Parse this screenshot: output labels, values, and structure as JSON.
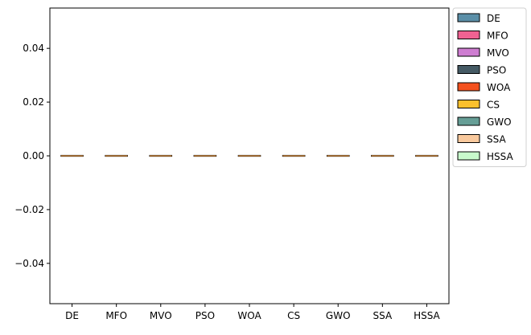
{
  "chart_data": {
    "type": "boxplot",
    "categories": [
      "DE",
      "MFO",
      "MVO",
      "PSO",
      "WOA",
      "CS",
      "GWO",
      "SSA",
      "HSSA"
    ],
    "series": [
      {
        "name": "DE",
        "color": "#5b8fa8",
        "min": 0,
        "q1": 0,
        "median": 0,
        "q3": 0,
        "max": 0
      },
      {
        "name": "MFO",
        "color": "#f06292",
        "min": 0,
        "q1": 0,
        "median": 0,
        "q3": 0,
        "max": 0
      },
      {
        "name": "MVO",
        "color": "#ce7dd1",
        "min": 0,
        "q1": 0,
        "median": 0,
        "q3": 0,
        "max": 0
      },
      {
        "name": "PSO",
        "color": "#455a64",
        "min": 0,
        "q1": 0,
        "median": 0,
        "q3": 0,
        "max": 0
      },
      {
        "name": "WOA",
        "color": "#f4511e",
        "min": 0,
        "q1": 0,
        "median": 0,
        "q3": 0,
        "max": 0
      },
      {
        "name": "CS",
        "color": "#fbc02d",
        "min": 0,
        "q1": 0,
        "median": 0,
        "q3": 0,
        "max": 0
      },
      {
        "name": "GWO",
        "color": "#669e96",
        "min": 0,
        "q1": 0,
        "median": 0,
        "q3": 0,
        "max": 0
      },
      {
        "name": "SSA",
        "color": "#f9c99d",
        "min": 0,
        "q1": 0,
        "median": 0,
        "q3": 0,
        "max": 0
      },
      {
        "name": "HSSA",
        "color": "#c8facc",
        "min": 0,
        "q1": 0,
        "median": 0,
        "q3": 0,
        "max": 0
      }
    ],
    "median_color": "#f0a04b",
    "ylim": [
      -0.055,
      0.055
    ],
    "yticks": [
      -0.04,
      -0.02,
      0.0,
      0.02,
      0.04
    ],
    "ytick_labels": [
      "−0.04",
      "−0.02",
      "0.00",
      "0.02",
      "0.04"
    ],
    "grid": false,
    "legend_position": "outside-right-top"
  }
}
